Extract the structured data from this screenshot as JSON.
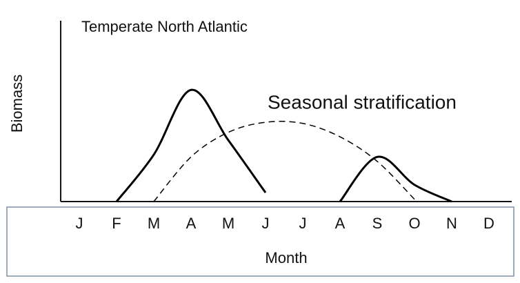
{
  "chart_data": {
    "type": "line",
    "title": "Temperate North Atlantic",
    "annotation": "Seasonal stratification",
    "x_label": "Month",
    "y_label": "Biomass",
    "categories": [
      "J",
      "F",
      "M",
      "A",
      "M",
      "J",
      "J",
      "A",
      "S",
      "O",
      "N",
      "D"
    ],
    "series": [
      {
        "color": "#000000",
        "style": "solid",
        "values": [
          null,
          0,
          42,
          100,
          55,
          8,
          null,
          0,
          40,
          15,
          0,
          null
        ]
      },
      {
        "color": "#000000",
        "style": "dashed",
        "values": [
          null,
          null,
          0,
          40,
          62,
          71,
          70,
          58,
          36,
          2,
          null,
          null
        ]
      }
    ],
    "ylim": [
      0,
      162
    ]
  }
}
